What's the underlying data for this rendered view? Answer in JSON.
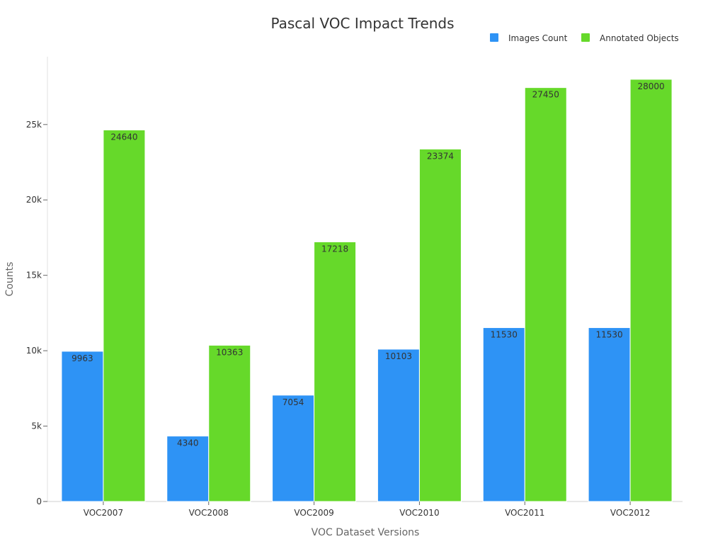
{
  "chart_data": {
    "type": "bar",
    "title": "Pascal VOC Impact Trends",
    "xlabel": "VOC Dataset Versions",
    "ylabel": "Counts",
    "categories": [
      "VOC2007",
      "VOC2008",
      "VOC2009",
      "VOC2010",
      "VOC2011",
      "VOC2012"
    ],
    "series": [
      {
        "name": "Images Count",
        "color": "#2e93f5",
        "values": [
          9963,
          4340,
          7054,
          10103,
          11530,
          11530
        ]
      },
      {
        "name": "Annotated Objects",
        "color": "#66d92a",
        "values": [
          24640,
          10363,
          17218,
          23374,
          27450,
          28000
        ]
      }
    ],
    "ylim": [
      0,
      29500
    ],
    "yticks": [
      {
        "value": 0,
        "label": "0"
      },
      {
        "value": 5000,
        "label": "5k"
      },
      {
        "value": 10000,
        "label": "10k"
      },
      {
        "value": 15000,
        "label": "15k"
      },
      {
        "value": 20000,
        "label": "20k"
      },
      {
        "value": 25000,
        "label": "25k"
      }
    ],
    "grid": false,
    "legend_position": "top-right"
  }
}
